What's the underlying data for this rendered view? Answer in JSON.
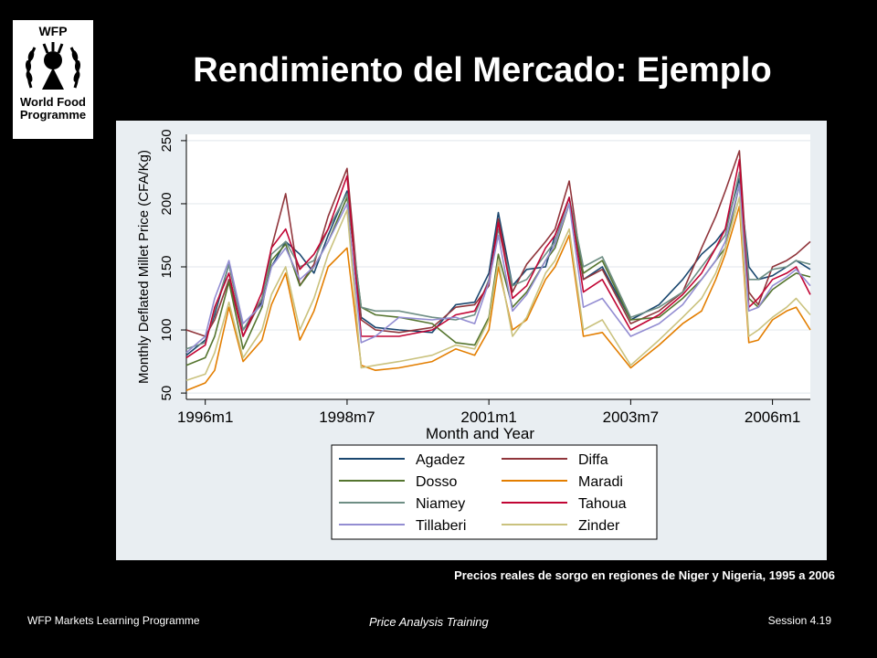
{
  "slide": {
    "title": "Rendimiento del Mercado: Ejemplo",
    "caption": "Precios reales de sorgo en regiones de Niger y Nigeria, 1995 a 2006",
    "footer_left": "WFP Markets Learning Programme",
    "footer_center": "Price Analysis Training",
    "footer_right": "Session 4.19"
  },
  "logo": {
    "acronym": "WFP",
    "line1": "World Food",
    "line2": "Programme",
    "icon": "wheat-wreath-icon"
  },
  "chart_data": {
    "type": "line",
    "title": "",
    "xlabel": "Month and Year",
    "ylabel": "Monthly Deflated Millet Price (CFA/Kg)",
    "xlim": [
      "1995m9",
      "2006m9"
    ],
    "ylim": [
      45,
      255
    ],
    "yticks": [
      50,
      100,
      150,
      200,
      250
    ],
    "xticks": [
      "1996m1",
      "1998m7",
      "2001m1",
      "2003m7",
      "2006m1"
    ],
    "grid": true,
    "legend_position": "bottom",
    "x": [
      "1995m9",
      "1996m1",
      "1996m3",
      "1996m6",
      "1996m9",
      "1997m1",
      "1997m3",
      "1997m6",
      "1997m9",
      "1997m12",
      "1998m3",
      "1998m7",
      "1998m10",
      "1999m1",
      "1999m6",
      "2000m1",
      "2000m6",
      "2000m10",
      "2001m1",
      "2001m3",
      "2001m6",
      "2001m9",
      "2002m1",
      "2002m3",
      "2002m6",
      "2002m9",
      "2003m1",
      "2003m7",
      "2004m1",
      "2004m6",
      "2004m10",
      "2005m1",
      "2005m3",
      "2005m6",
      "2005m8",
      "2005m10",
      "2006m1",
      "2006m4",
      "2006m6",
      "2006m9"
    ],
    "series": [
      {
        "name": "Agadez",
        "color": "#1a476f",
        "values": [
          80,
          92,
          112,
          152,
          100,
          122,
          150,
          170,
          160,
          145,
          175,
          210,
          110,
          102,
          100,
          98,
          120,
          122,
          145,
          193,
          135,
          148,
          150,
          175,
          205,
          140,
          150,
          108,
          120,
          140,
          160,
          170,
          180,
          220,
          150,
          140,
          143,
          150,
          155,
          148
        ]
      },
      {
        "name": "Diffa",
        "color": "#90353b",
        "values": [
          100,
          95,
          108,
          140,
          95,
          125,
          165,
          208,
          135,
          152,
          190,
          228,
          108,
          100,
          98,
          102,
          118,
          120,
          135,
          188,
          130,
          152,
          170,
          180,
          218,
          140,
          148,
          105,
          115,
          130,
          165,
          190,
          210,
          242,
          130,
          120,
          150,
          155,
          160,
          170
        ]
      },
      {
        "name": "Dosso",
        "color": "#55752f",
        "values": [
          72,
          78,
          95,
          138,
          85,
          118,
          155,
          168,
          135,
          150,
          170,
          205,
          118,
          112,
          110,
          105,
          90,
          88,
          110,
          160,
          118,
          130,
          155,
          165,
          200,
          145,
          155,
          108,
          110,
          125,
          140,
          155,
          165,
          215,
          125,
          118,
          132,
          140,
          145,
          142
        ]
      },
      {
        "name": "Maradi",
        "color": "#e37e00",
        "values": [
          52,
          58,
          68,
          118,
          75,
          92,
          120,
          145,
          92,
          115,
          150,
          165,
          72,
          68,
          70,
          75,
          85,
          80,
          100,
          150,
          100,
          108,
          140,
          150,
          175,
          95,
          98,
          70,
          88,
          105,
          115,
          140,
          160,
          198,
          90,
          92,
          108,
          115,
          118,
          100
        ]
      },
      {
        "name": "Niamey",
        "color": "#6e8e84",
        "values": [
          85,
          90,
          115,
          152,
          100,
          125,
          160,
          170,
          150,
          155,
          180,
          208,
          118,
          115,
          115,
          110,
          108,
          112,
          140,
          180,
          135,
          140,
          160,
          170,
          205,
          150,
          158,
          110,
          118,
          130,
          150,
          165,
          175,
          225,
          140,
          140,
          148,
          150,
          155,
          152
        ]
      },
      {
        "name": "Tahoua",
        "color": "#c10534",
        "values": [
          78,
          88,
          118,
          145,
          95,
          130,
          165,
          180,
          148,
          160,
          180,
          222,
          95,
          95,
          95,
          100,
          112,
          115,
          138,
          185,
          125,
          135,
          165,
          175,
          205,
          130,
          140,
          100,
          112,
          128,
          145,
          165,
          180,
          235,
          118,
          125,
          140,
          145,
          150,
          128
        ]
      },
      {
        "name": "Tillaberi",
        "color": "#938dd2",
        "values": [
          82,
          95,
          125,
          155,
          105,
          120,
          150,
          165,
          140,
          150,
          170,
          200,
          90,
          95,
          110,
          108,
          110,
          105,
          138,
          175,
          115,
          128,
          155,
          168,
          200,
          118,
          125,
          95,
          105,
          120,
          140,
          155,
          170,
          215,
          115,
          118,
          135,
          142,
          148,
          135
        ]
      },
      {
        "name": "Zinder",
        "color": "#cac27e",
        "values": [
          60,
          65,
          82,
          122,
          78,
          100,
          128,
          150,
          100,
          125,
          160,
          195,
          70,
          72,
          75,
          80,
          88,
          85,
          108,
          155,
          95,
          110,
          145,
          155,
          180,
          100,
          108,
          72,
          92,
          110,
          125,
          145,
          165,
          205,
          95,
          100,
          110,
          118,
          125,
          112
        ]
      }
    ]
  }
}
